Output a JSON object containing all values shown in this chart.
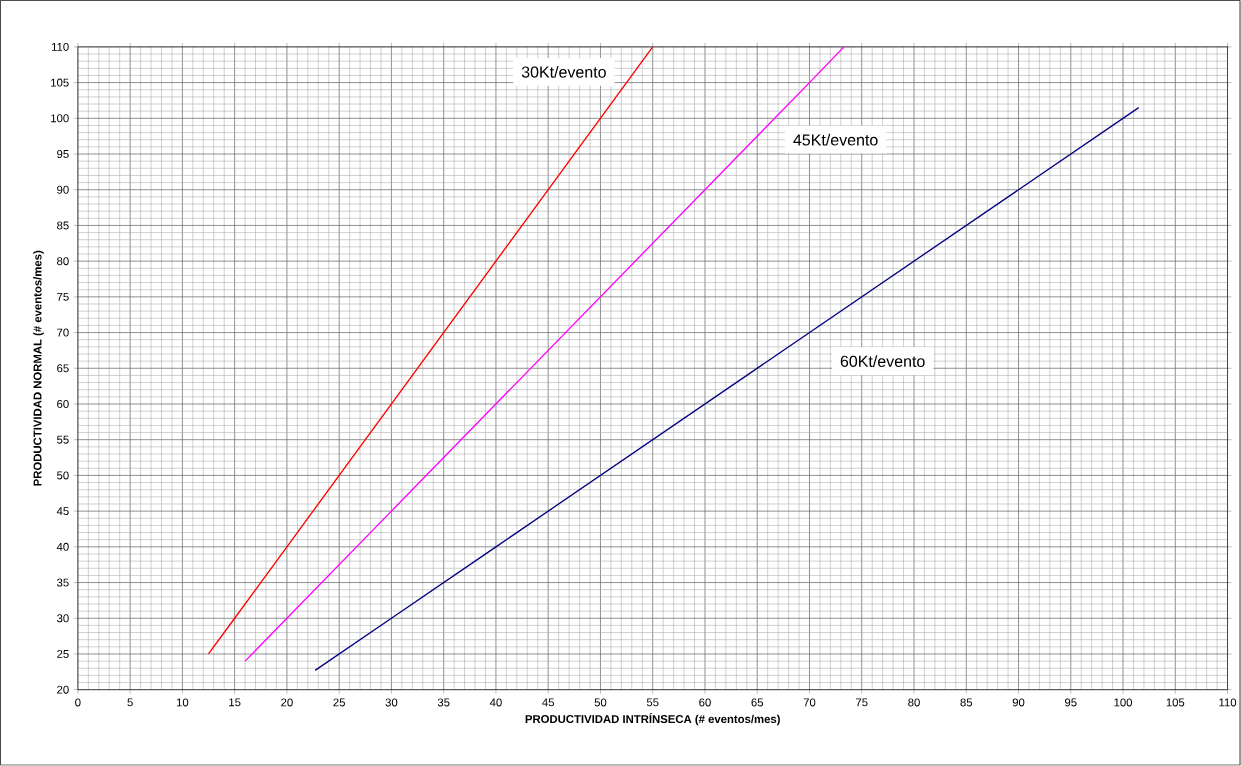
{
  "chart_data": {
    "type": "line",
    "xlabel": "PRODUCTIVIDAD INTRÍNSECA (# eventos/mes)",
    "ylabel": "PRODUCTIVIDAD NORMAL (# eventos/mes)",
    "xlim": [
      0,
      110
    ],
    "ylim": [
      20,
      110
    ],
    "xticks": [
      0,
      5,
      10,
      15,
      20,
      25,
      30,
      35,
      40,
      45,
      50,
      55,
      60,
      65,
      70,
      75,
      80,
      85,
      90,
      95,
      100,
      105,
      110
    ],
    "yticks": [
      20,
      25,
      30,
      35,
      40,
      45,
      50,
      55,
      60,
      65,
      70,
      75,
      80,
      85,
      90,
      95,
      100,
      105,
      110
    ],
    "grid": true,
    "legend": false,
    "marker": "none",
    "line_style": "solid",
    "series": [
      {
        "name": "30Kt/evento",
        "color": "#ff0000",
        "x": [
          12.5,
          15,
          20,
          25,
          30,
          35,
          40,
          45,
          50,
          55
        ],
        "values": [
          25,
          30,
          40,
          50,
          60,
          70,
          80,
          90,
          100,
          110
        ]
      },
      {
        "name": "45Kt/evento",
        "color": "#ff00ff",
        "x": [
          16,
          20,
          25,
          30,
          40,
          50,
          60,
          70,
          73.3
        ],
        "values": [
          24,
          30,
          37.5,
          45,
          60,
          75,
          90,
          105,
          110
        ]
      },
      {
        "name": "60Kt/evento",
        "color": "#000080",
        "x": [
          22.7,
          30,
          40,
          50,
          60,
          70,
          80,
          90,
          101.5
        ],
        "values": [
          22.7,
          30,
          40,
          50,
          60,
          70,
          80,
          90,
          101.5
        ]
      }
    ]
  }
}
